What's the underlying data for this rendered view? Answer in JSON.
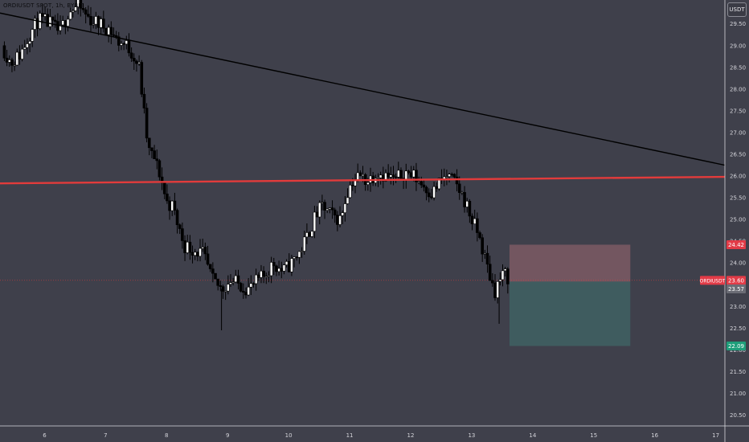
{
  "header": {
    "title": "ORDIUSDT SPOT, 1h, BYBIT",
    "currency_button": "USDT"
  },
  "colors": {
    "background": "#3f404b",
    "candle_up": "#ffffff",
    "candle_down": "#000000",
    "resistance": "#e23b3b",
    "trendline": "#000000",
    "stop_zone": "#7d5a64",
    "target_zone": "#3f5e60",
    "label_red": "#e23b47",
    "label_green": "#1e9e7a",
    "label_gray": "#6b6c75"
  },
  "chart_data": {
    "type": "candlestick",
    "title": "ORDIUSDT SPOT, 1h, BYBIT",
    "xlabel": "",
    "ylabel": "",
    "x_ticks": [
      "6",
      "7",
      "8",
      "9",
      "10",
      "11",
      "12",
      "13",
      "14",
      "15",
      "16",
      "17"
    ],
    "y_ticks": [
      "20.50",
      "21.00",
      "21.50",
      "22.00",
      "22.50",
      "23.00",
      "23.50",
      "24.00",
      "24.50",
      "25.00",
      "25.50",
      "26.00",
      "26.50",
      "27.00",
      "27.50",
      "28.00",
      "28.50",
      "29.00",
      "29.50"
    ],
    "ylim": [
      20.25,
      30.05
    ],
    "xlim": [
      5.27,
      17.15
    ],
    "grid": false,
    "price_path": [
      [
        5.3,
        29.0
      ],
      [
        5.45,
        28.6
      ],
      [
        5.6,
        28.8
      ],
      [
        5.75,
        29.25
      ],
      [
        5.9,
        29.6
      ],
      [
        6.1,
        29.5
      ],
      [
        6.25,
        29.3
      ],
      [
        6.4,
        29.8
      ],
      [
        6.55,
        29.9
      ],
      [
        6.75,
        29.6
      ],
      [
        6.9,
        29.5
      ],
      [
        7.05,
        29.4
      ],
      [
        7.2,
        29.1
      ],
      [
        7.35,
        29.0
      ],
      [
        7.45,
        28.8
      ],
      [
        7.55,
        28.5
      ],
      [
        7.65,
        27.2
      ],
      [
        7.7,
        26.6
      ],
      [
        7.8,
        26.4
      ],
      [
        7.9,
        26.0
      ],
      [
        8.0,
        25.4
      ],
      [
        8.1,
        25.3
      ],
      [
        8.2,
        24.8
      ],
      [
        8.3,
        24.4
      ],
      [
        8.45,
        24.3
      ],
      [
        8.6,
        24.2
      ],
      [
        8.75,
        23.6
      ],
      [
        8.9,
        23.4
      ],
      [
        9.05,
        23.6
      ],
      [
        9.2,
        23.5
      ],
      [
        9.35,
        23.4
      ],
      [
        9.5,
        23.6
      ],
      [
        9.6,
        23.7
      ],
      [
        9.75,
        24.0
      ],
      [
        9.9,
        23.8
      ],
      [
        10.05,
        24.0
      ],
      [
        10.2,
        24.3
      ],
      [
        10.3,
        24.6
      ],
      [
        10.45,
        25.1
      ],
      [
        10.55,
        25.3
      ],
      [
        10.7,
        25.1
      ],
      [
        10.85,
        25.0
      ],
      [
        10.95,
        25.6
      ],
      [
        11.05,
        25.9
      ],
      [
        11.15,
        26.0
      ],
      [
        11.3,
        25.9
      ],
      [
        11.45,
        26.1
      ],
      [
        11.6,
        26.0
      ],
      [
        11.75,
        25.9
      ],
      [
        11.9,
        26.1
      ],
      [
        12.05,
        26.0
      ],
      [
        12.2,
        25.8
      ],
      [
        12.35,
        25.6
      ],
      [
        12.5,
        25.9
      ],
      [
        12.6,
        26.0
      ],
      [
        12.75,
        25.8
      ],
      [
        12.9,
        25.4
      ],
      [
        13.0,
        25.0
      ],
      [
        13.1,
        24.7
      ],
      [
        13.2,
        24.2
      ],
      [
        13.3,
        23.7
      ],
      [
        13.38,
        23.35
      ],
      [
        13.45,
        23.6
      ],
      [
        13.55,
        23.75
      ],
      [
        13.62,
        23.6
      ]
    ],
    "big_wicks": [
      [
        8.9,
        22.45
      ],
      [
        13.45,
        22.6
      ]
    ],
    "trendline": {
      "x": [
        5.27,
        17.15
      ],
      "y": [
        29.75,
        26.25
      ]
    },
    "resistance": {
      "x": [
        5.27,
        17.15
      ],
      "y": [
        25.83,
        25.98
      ]
    },
    "price_line": 23.6,
    "position": {
      "x_start": 13.62,
      "x_end": 15.6,
      "entry": 23.57,
      "stop": 24.42,
      "target": 22.09
    },
    "price_labels": [
      {
        "text": "24.42",
        "price": 24.42,
        "color": "label_red"
      },
      {
        "text": "23.60",
        "price": 23.6,
        "color": "label_red"
      },
      {
        "text": "23.57",
        "price": 23.57,
        "color": "label_gray"
      },
      {
        "text": "22.09",
        "price": 22.09,
        "color": "label_green"
      }
    ],
    "symbol_tag": "ORDIUSDT"
  }
}
